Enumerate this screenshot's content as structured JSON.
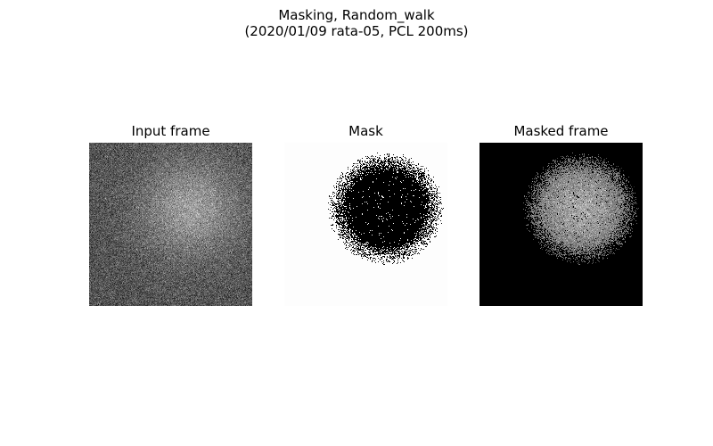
{
  "figure": {
    "title_line1": "Masking, Random_walk",
    "title_line2": "(2020/01/09 rata-05, PCL 200ms)"
  },
  "chart_data": [
    {
      "type": "heatmap",
      "title": "Input frame",
      "colormap": "gray",
      "axes": "off",
      "description_values": {
        "background_level": 0.33,
        "spot_level": 0.62,
        "spot_center": [
          0.62,
          0.4
        ],
        "spot_radius": [
          0.31,
          0.3
        ]
      }
    },
    {
      "type": "heatmap",
      "title": "Mask",
      "colormap": "gray_inverted_binary",
      "axes": "off",
      "description_values": {
        "masked_fraction_center": 1.0,
        "edge_noise": 0.45
      }
    },
    {
      "type": "heatmap",
      "title": "Masked frame",
      "colormap": "gray",
      "axes": "off",
      "description_values": {
        "background_level": 0.0,
        "spot_level": 0.55
      }
    }
  ]
}
